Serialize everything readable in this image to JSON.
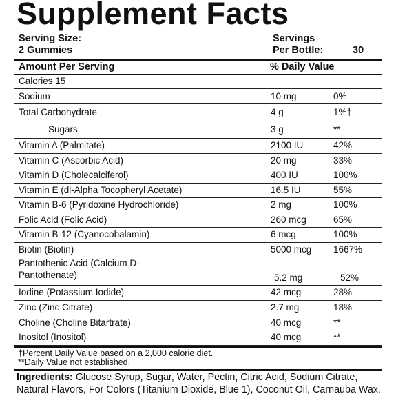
{
  "header": {
    "title": "Supplement Facts",
    "serving_size_label": "Serving Size:",
    "serving_size": "2 Gummies",
    "servings_label": "Servings",
    "servings_per_label": "Per Bottle:",
    "servings_per": "30"
  },
  "table": {
    "columns": [
      "Amount Per Serving",
      "% Daily Value"
    ],
    "calories": "Calories 15",
    "rows": [
      [
        "Sodium",
        "10 mg",
        "0%"
      ],
      [
        "Total Carbohydrate",
        "4 g",
        "1%†"
      ],
      [
        "Sugars",
        "3 g",
        "**"
      ],
      [
        "Vitamin A (Palmitate)",
        "2100 IU",
        "42%"
      ],
      [
        "Vitamin C (Ascorbic Acid)",
        "20 mg",
        "33%"
      ],
      [
        "Vitamin D (Cholecalciferol)",
        "400 IU",
        "100%"
      ],
      [
        "Vitamin E (dl-Alpha Tocopheryl Acetate)",
        "16.5 IU",
        "55%"
      ],
      [
        "Vitamin B-6 (Pyridoxine Hydrochloride)",
        "2 mg",
        "100%"
      ],
      [
        "Folic Acid (Folic Acid)",
        "260 mcg",
        "65%"
      ],
      [
        "Vitamin B-12 (Cyanocobalamin)",
        "6 mcg",
        "100%"
      ],
      [
        "Biotin (Biotin)",
        "5000 mcg",
        "1667%"
      ],
      [
        "Pantothenic Acid (Calcium D-Pantothenate)",
        "5.2 mg",
        "52%"
      ],
      [
        "Iodine (Potassium Iodide)",
        "42 mcg",
        "28%"
      ],
      [
        "Zinc (Zinc Citrate)",
        "2.7 mg",
        "18%"
      ],
      [
        "Choline (Choline Bitartrate)",
        "40 mcg",
        "**"
      ],
      [
        "Inositol (Inositol)",
        "40 mcg",
        "**"
      ]
    ]
  },
  "footnotes": [
    "†Percent Daily Value based on a 2,000 calorie diet.",
    "**Daily Value not established."
  ],
  "ingredients": {
    "label": "Ingredients:",
    "text": "Glucose Syrup, Sugar, Water, Pectin, Citric Acid, Sodium Citrate, Natural Flavors, For Colors (Titanium Dioxide, Blue 1), Coconut Oil, Carnauba Wax."
  }
}
